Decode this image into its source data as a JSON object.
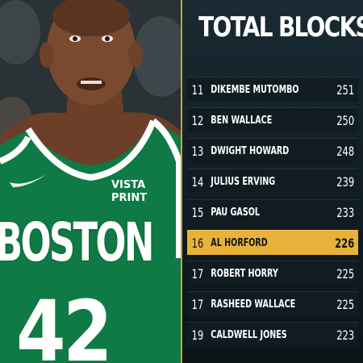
{
  "title": "TOTAL BLOCKS",
  "jersey": {
    "team": "BOSTON",
    "number": "42",
    "sponsor_line1": "VISTA",
    "sponsor_line2": "PRINT"
  },
  "colors": {
    "jersey_green": "#0f7a45",
    "highlight": "#e8b23a",
    "panel_bg": "#111c22",
    "accent_line": "#c9a43a"
  },
  "rows": [
    {
      "rank": "11",
      "name": "DIKEMBE MUTOMBO",
      "value": "251",
      "highlight": false
    },
    {
      "rank": "12",
      "name": "BEN WALLACE",
      "value": "250",
      "highlight": false
    },
    {
      "rank": "13",
      "name": "DWIGHT HOWARD",
      "value": "248",
      "highlight": false
    },
    {
      "rank": "14",
      "name": "JULIUS ERVING",
      "value": "239",
      "highlight": false
    },
    {
      "rank": "15",
      "name": "PAU GASOL",
      "value": "233",
      "highlight": false
    },
    {
      "rank": "16",
      "name": "AL HORFORD",
      "value": "226",
      "highlight": true
    },
    {
      "rank": "17",
      "name": "ROBERT HORRY",
      "value": "225",
      "highlight": false
    },
    {
      "rank": "17",
      "name": "RASHEED WALLACE",
      "value": "225",
      "highlight": false
    },
    {
      "rank": "19",
      "name": "CALDWELL JONES",
      "value": "223",
      "highlight": false
    }
  ]
}
